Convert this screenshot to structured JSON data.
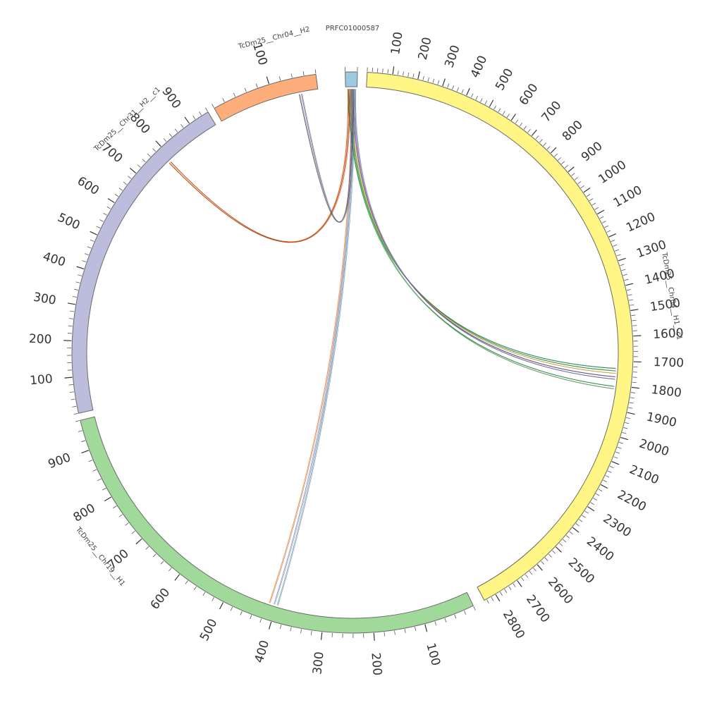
{
  "diagram": {
    "segments": [
      {
        "id": "TcDm25__Chr04__H1__c1",
        "label": "TcDm25__Chr04__H1__c1",
        "length": 2850,
        "color": "#fff685",
        "tick_labels": [
          "100",
          "200",
          "300",
          "400",
          "500",
          "600",
          "700",
          "800",
          "900",
          "1000",
          "1100",
          "1200",
          "1300",
          "1400",
          "1500",
          "1600",
          "1700",
          "1800",
          "1900",
          "2000",
          "2100",
          "2200",
          "2300",
          "2400",
          "2500",
          "2600",
          "2700",
          "2800"
        ]
      },
      {
        "id": "TcDm25__Chr19__H1",
        "label": "TcDm25__Chr19__H1",
        "length": 960,
        "color": "#a1d99b",
        "tick_labels": [
          "100",
          "200",
          "300",
          "400",
          "500",
          "600",
          "700",
          "800",
          "900"
        ]
      },
      {
        "id": "TcDm25__Chr31__H2__c1",
        "label": "TcDm25__Chr31__H2__c1",
        "length": 960,
        "color": "#bcbddc",
        "tick_labels": [
          "100",
          "200",
          "300",
          "400",
          "500",
          "600",
          "700",
          "800",
          "900"
        ]
      },
      {
        "id": "TcDm25__Chr04__H2",
        "label": "TcDm25__Chr04__H2",
        "length": 180,
        "color": "#fdae7b",
        "tick_labels": [
          "100"
        ]
      },
      {
        "id": "PRFC01000587",
        "label": "PRFC01000587",
        "length": 20,
        "color": "#9ecae1",
        "tick_labels": []
      }
    ],
    "links": [
      {
        "from": "PRFC01000587",
        "to": "TcDm25__Chr04__H1__c1",
        "to_pos": 1730,
        "color": "#2ca25f"
      },
      {
        "from": "PRFC01000587",
        "to": "TcDm25__Chr04__H1__c1",
        "to_pos": 1740,
        "color": "#41ab5d"
      },
      {
        "from": "PRFC01000587",
        "to": "TcDm25__Chr04__H1__c1",
        "to_pos": 1750,
        "color": "#fdd835"
      },
      {
        "from": "PRFC01000587",
        "to": "TcDm25__Chr04__H1__c1",
        "to_pos": 1765,
        "color": "#6a51a3"
      },
      {
        "from": "PRFC01000587",
        "to": "TcDm25__Chr04__H1__c1",
        "to_pos": 1775,
        "color": "#807dba"
      },
      {
        "from": "PRFC01000587",
        "to": "TcDm25__Chr04__H1__c1",
        "to_pos": 1805,
        "color": "#31a354"
      },
      {
        "from": "PRFC01000587",
        "to": "TcDm25__Chr04__H1__c1",
        "to_pos": 1815,
        "color": "#78c679"
      },
      {
        "from": "PRFC01000587",
        "to": "TcDm25__Chr19__H1",
        "to_pos": 415,
        "color": "#fd8d3c"
      },
      {
        "from": "PRFC01000587",
        "to": "TcDm25__Chr19__H1",
        "to_pos": 405,
        "color": "#9e9ac8"
      },
      {
        "from": "PRFC01000587",
        "to": "TcDm25__Chr19__H1",
        "to_pos": 398,
        "color": "#6baed6"
      },
      {
        "from": "PRFC01000587",
        "to": "TcDm25__Chr31__H2__c1",
        "to_pos": 790,
        "color": "#e6550d"
      },
      {
        "from": "PRFC01000587",
        "to": "TcDm25__Chr31__H2__c1",
        "to_pos": 785,
        "color": "#d94801"
      },
      {
        "from": "PRFC01000587",
        "to": "TcDm25__Chr04__H2",
        "to_pos": 150,
        "color": "#756bb1"
      },
      {
        "from": "PRFC01000587",
        "to": "TcDm25__Chr04__H2",
        "to_pos": 146,
        "color": "#636363"
      }
    ]
  }
}
